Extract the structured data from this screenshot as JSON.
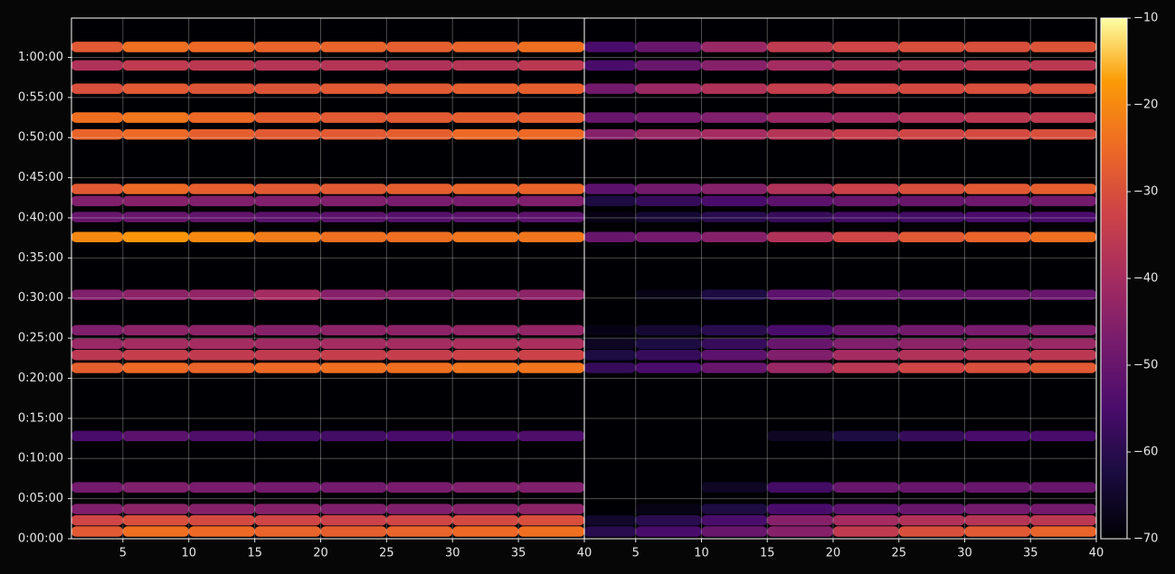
{
  "chart_data": {
    "type": "heatmap",
    "ylim": [
      0,
      64.9
    ],
    "yticks": [
      {
        "value": 0,
        "label": "0:00:00"
      },
      {
        "value": 5,
        "label": "0:05:00"
      },
      {
        "value": 10,
        "label": "0:10:00"
      },
      {
        "value": 15,
        "label": "0:15:00"
      },
      {
        "value": 20,
        "label": "0:20:00"
      },
      {
        "value": 25,
        "label": "0:25:00"
      },
      {
        "value": 30,
        "label": "0:30:00"
      },
      {
        "value": 35,
        "label": "0:35:00"
      },
      {
        "value": 40,
        "label": "0:40:00"
      },
      {
        "value": 45,
        "label": "0:45:00"
      },
      {
        "value": 50,
        "label": "0:50:00"
      },
      {
        "value": 55,
        "label": "0:55:00"
      },
      {
        "value": 60,
        "label": "1:00:00"
      }
    ],
    "grid": true,
    "colorbar": {
      "lim": [
        -70,
        -10
      ],
      "colormap": "inferno",
      "ticks": [
        {
          "value": -70,
          "label": "−70"
        },
        {
          "value": -60,
          "label": "−60"
        },
        {
          "value": -50,
          "label": "−50"
        },
        {
          "value": -40,
          "label": "−40"
        },
        {
          "value": -30,
          "label": "−30"
        },
        {
          "value": -20,
          "label": "−20"
        },
        {
          "value": -10,
          "label": "−10"
        }
      ]
    },
    "panels": [
      {
        "xlim": [
          1.1,
          40
        ],
        "xticks": [
          5,
          10,
          15,
          20,
          25,
          30,
          35,
          40
        ],
        "x_bins": [
          1.1,
          5,
          10,
          15,
          20,
          25,
          30,
          35,
          40
        ],
        "y": [
          0.9,
          2.3,
          3.7,
          6.4,
          12.8,
          21.3,
          22.9,
          24.3,
          26.0,
          30.4,
          37.6,
          40.1,
          42.1,
          43.6,
          50.4,
          52.5,
          56.1,
          59.0,
          61.3
        ],
        "z": [
          [
            -28,
            -24,
            -25,
            -26,
            -27,
            -26,
            -25,
            -24
          ],
          [
            -32,
            -30,
            -31,
            -32,
            -33,
            -32,
            -31,
            -30
          ],
          [
            -46,
            -44,
            -45,
            -45,
            -46,
            -46,
            -45,
            -44
          ],
          [
            -48,
            -46,
            -47,
            -48,
            -48,
            -47,
            -46,
            -46
          ],
          [
            -55,
            -52,
            -54,
            -56,
            -56,
            -55,
            -55,
            -54
          ],
          [
            -27,
            -25,
            -26,
            -25,
            -24,
            -24,
            -23,
            -23
          ],
          [
            -36,
            -34,
            -35,
            -35,
            -34,
            -34,
            -33,
            -33
          ],
          [
            -42,
            -40,
            -40,
            -41,
            -40,
            -40,
            -39,
            -39
          ],
          [
            -46,
            -44,
            -44,
            -45,
            -44,
            -44,
            -43,
            -43
          ],
          [
            -46,
            -44,
            -43,
            -40,
            -45,
            -45,
            -44,
            -44
          ],
          [
            -20,
            -18,
            -20,
            -22,
            -24,
            -24,
            -23,
            -23
          ],
          [
            -50,
            -50,
            -51,
            -52,
            -52,
            -53,
            -52,
            -52
          ],
          [
            -46,
            -45,
            -46,
            -46,
            -46,
            -47,
            -47,
            -46
          ],
          [
            -28,
            -25,
            -27,
            -28,
            -28,
            -27,
            -26,
            -26
          ],
          [
            -26,
            -25,
            -27,
            -28,
            -28,
            -27,
            -25,
            -25
          ],
          [
            -24,
            -23,
            -25,
            -27,
            -28,
            -28,
            -27,
            -27
          ],
          [
            -30,
            -28,
            -29,
            -29,
            -28,
            -28,
            -27,
            -27
          ],
          [
            -38,
            -35,
            -36,
            -37,
            -37,
            -38,
            -37,
            -36
          ],
          [
            -28,
            -24,
            -25,
            -26,
            -26,
            -27,
            -26,
            -24
          ]
        ]
      },
      {
        "xlim": [
          1.1,
          40
        ],
        "xticks": [
          5,
          10,
          15,
          20,
          25,
          30,
          35,
          40
        ],
        "x_bins": [
          1.1,
          5,
          10,
          15,
          20,
          25,
          30,
          35,
          40
        ],
        "y": [
          0.9,
          2.3,
          3.7,
          6.4,
          12.8,
          21.3,
          22.9,
          24.3,
          26.0,
          30.4,
          37.6,
          40.1,
          42.1,
          43.6,
          50.4,
          52.5,
          56.1,
          59.0,
          61.3
        ],
        "z": [
          [
            -60,
            -55,
            -50,
            -45,
            -35,
            -30,
            -28,
            -26
          ],
          [
            -65,
            -60,
            -55,
            -45,
            -40,
            -38,
            -37,
            -36
          ],
          [
            -70,
            -68,
            -62,
            -55,
            -52,
            -50,
            -48,
            -48
          ],
          [
            -70,
            -70,
            -66,
            -56,
            -50,
            -50,
            -50,
            -50
          ],
          [
            -70,
            -70,
            -70,
            -66,
            -62,
            -58,
            -55,
            -55
          ],
          [
            -58,
            -55,
            -50,
            -42,
            -36,
            -32,
            -30,
            -28
          ],
          [
            -62,
            -58,
            -52,
            -46,
            -40,
            -38,
            -37,
            -36
          ],
          [
            -66,
            -62,
            -58,
            -50,
            -46,
            -44,
            -43,
            -42
          ],
          [
            -68,
            -64,
            -60,
            -55,
            -50,
            -48,
            -47,
            -46
          ],
          [
            -70,
            -68,
            -62,
            -52,
            -50,
            -50,
            -50,
            -50
          ],
          [
            -50,
            -48,
            -45,
            -38,
            -32,
            -28,
            -26,
            -24
          ],
          [
            -68,
            -64,
            -60,
            -58,
            -56,
            -56,
            -55,
            -55
          ],
          [
            -62,
            -58,
            -55,
            -52,
            -50,
            -50,
            -49,
            -48
          ],
          [
            -52,
            -48,
            -45,
            -38,
            -33,
            -30,
            -28,
            -27
          ],
          [
            -45,
            -42,
            -40,
            -37,
            -34,
            -32,
            -31,
            -30
          ],
          [
            -50,
            -48,
            -46,
            -42,
            -40,
            -38,
            -36,
            -35
          ],
          [
            -48,
            -42,
            -38,
            -34,
            -32,
            -31,
            -30,
            -30
          ],
          [
            -55,
            -50,
            -45,
            -40,
            -38,
            -37,
            -36,
            -36
          ],
          [
            -55,
            -50,
            -42,
            -35,
            -32,
            -30,
            -30,
            -29
          ]
        ]
      }
    ]
  }
}
